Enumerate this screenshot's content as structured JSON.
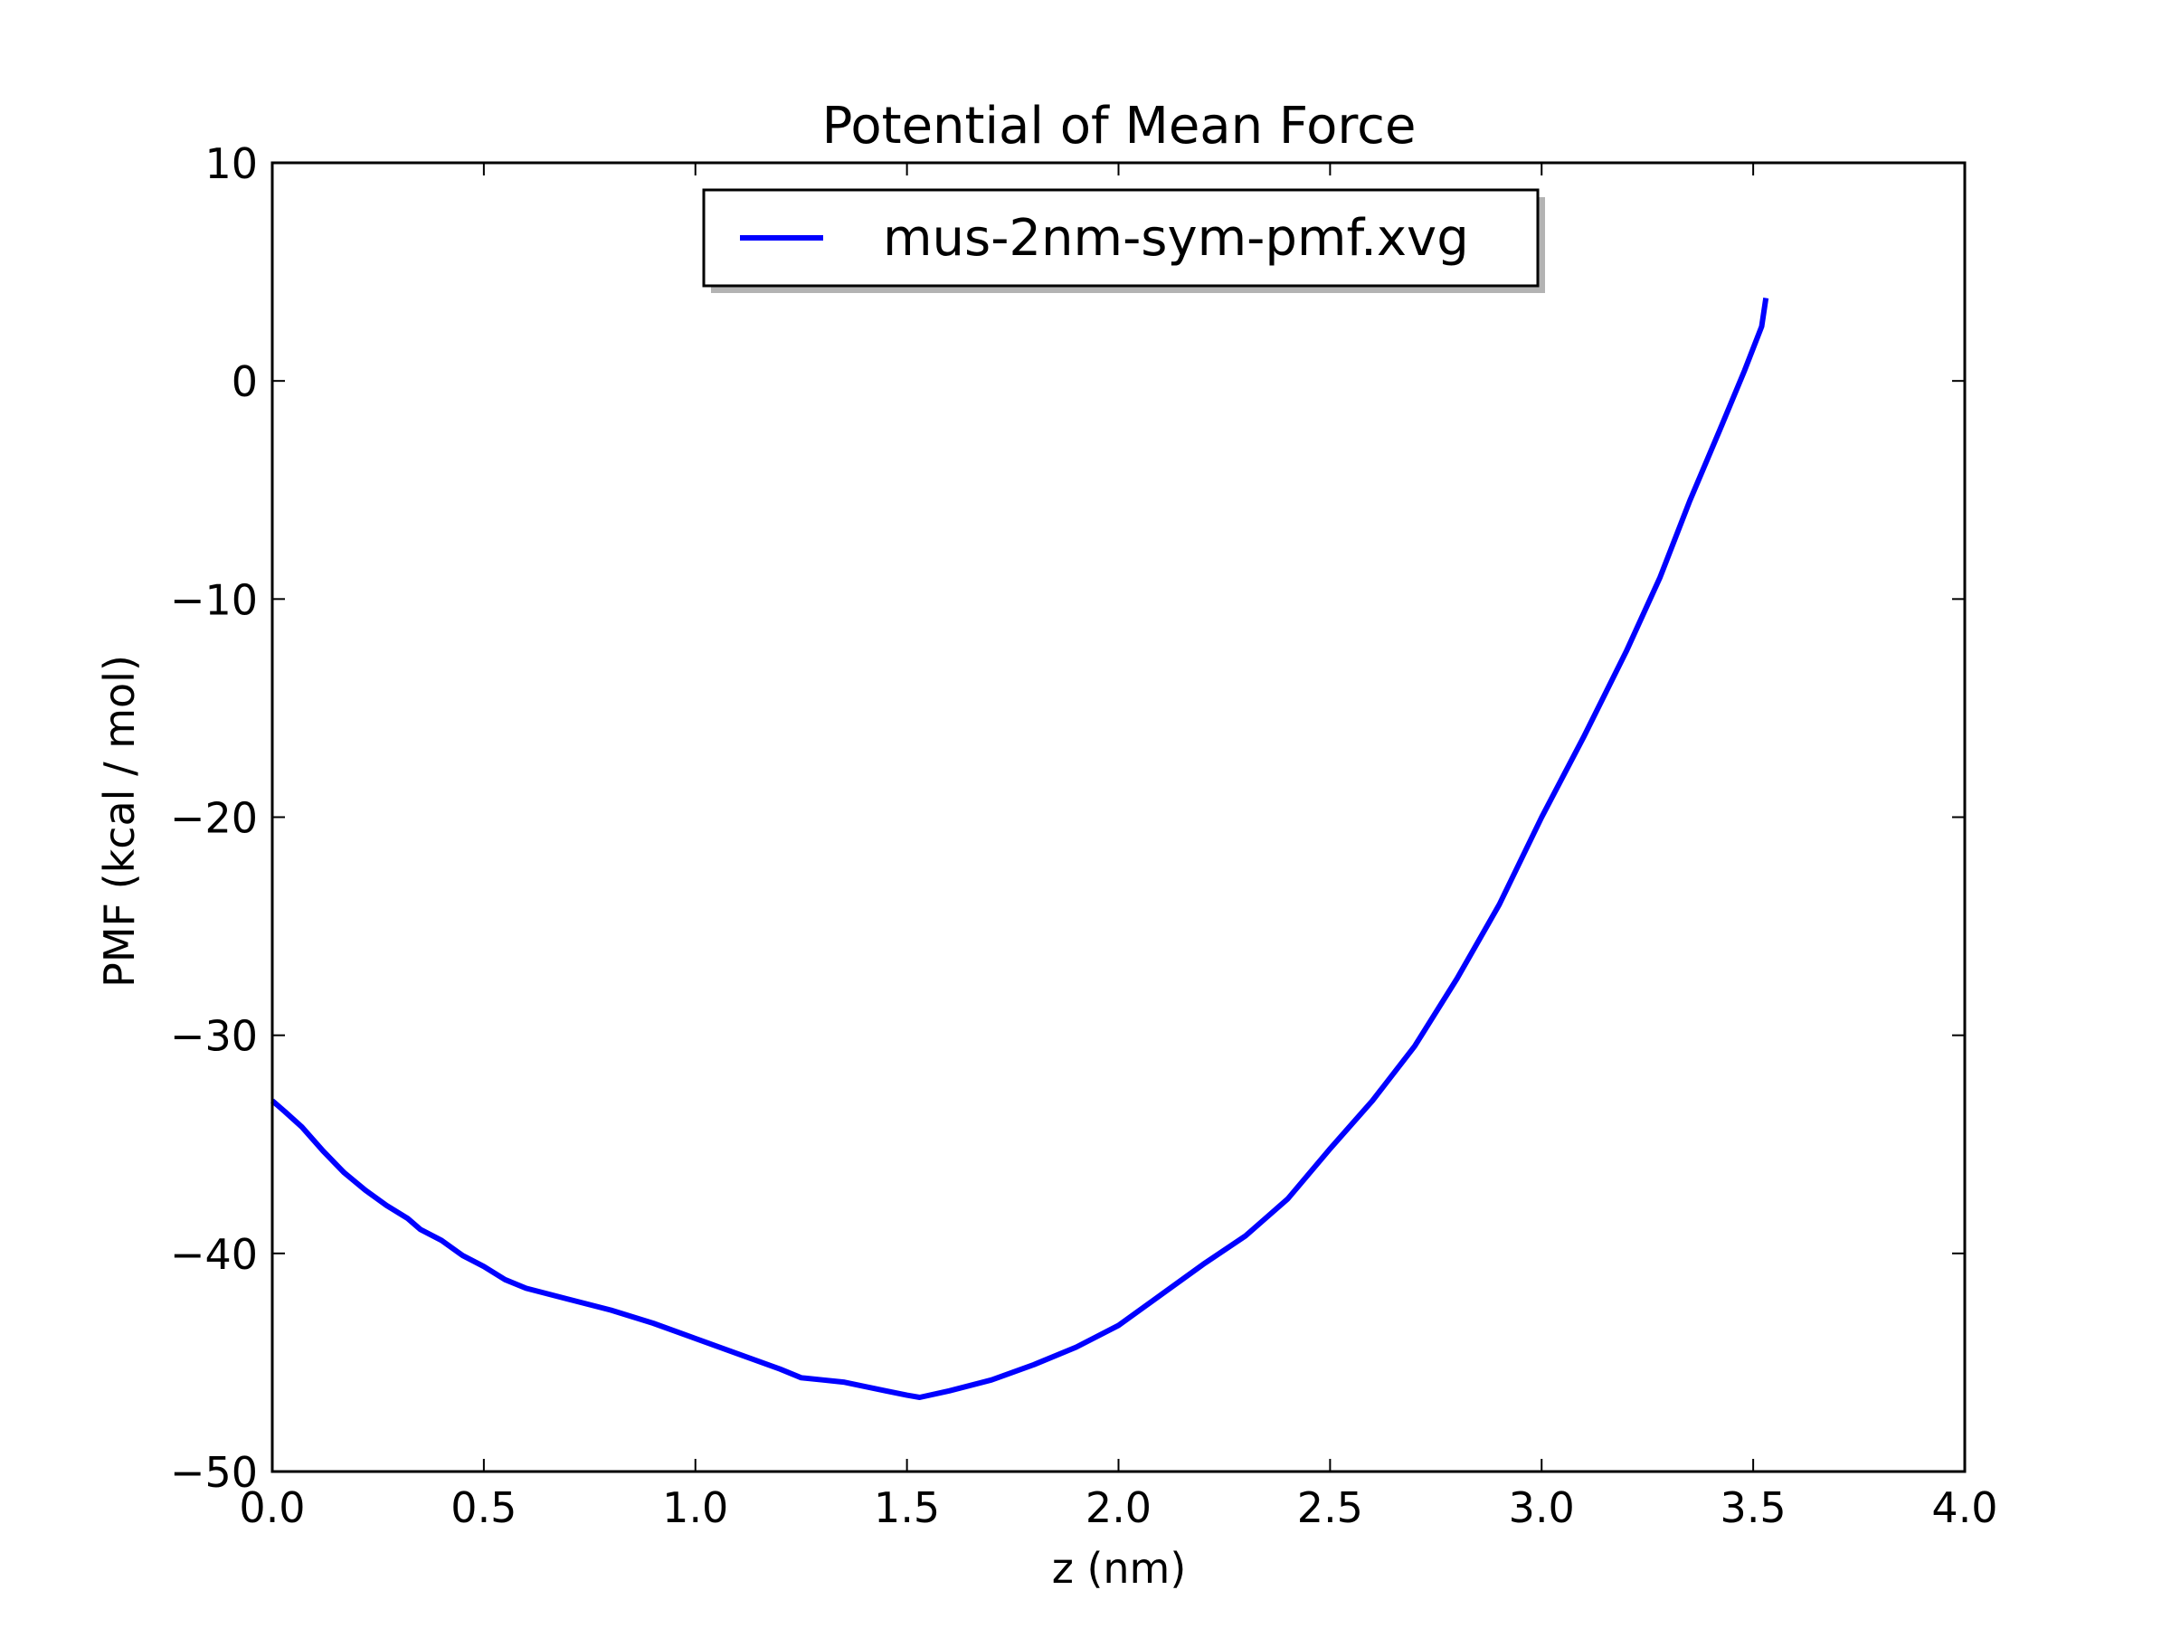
{
  "chart_data": {
    "type": "line",
    "title": "Potential of Mean Force",
    "xlabel": "z (nm)",
    "ylabel": "PMF (kcal / mol)",
    "xlim": [
      0.0,
      4.0
    ],
    "ylim": [
      -50,
      10
    ],
    "xticks": [
      0.0,
      0.5,
      1.0,
      1.5,
      2.0,
      2.5,
      3.0,
      3.5,
      4.0
    ],
    "xtick_labels": [
      "0.0",
      "0.5",
      "1.0",
      "1.5",
      "2.0",
      "2.5",
      "3.0",
      "3.5",
      "4.0"
    ],
    "yticks": [
      -50,
      -40,
      -30,
      -20,
      -10,
      0,
      10
    ],
    "ytick_labels": [
      "−50",
      "−40",
      "−30",
      "−20",
      "−10",
      "0",
      "10"
    ],
    "grid": false,
    "legend_position": "upper center",
    "series": [
      {
        "name": "mus-2nm-sym-pmf.xvg",
        "color": "#0000ff",
        "x": [
          0.0,
          0.03,
          0.07,
          0.12,
          0.17,
          0.22,
          0.27,
          0.32,
          0.35,
          0.4,
          0.45,
          0.5,
          0.55,
          0.6,
          0.7,
          0.8,
          0.9,
          1.0,
          1.1,
          1.2,
          1.25,
          1.3,
          1.35,
          1.4,
          1.45,
          1.5,
          1.53,
          1.6,
          1.7,
          1.8,
          1.9,
          2.0,
          2.1,
          2.2,
          2.3,
          2.4,
          2.5,
          2.6,
          2.7,
          2.8,
          2.9,
          3.0,
          3.1,
          3.2,
          3.28,
          3.35,
          3.42,
          3.48,
          3.52,
          3.53
        ],
        "y": [
          -33.0,
          -33.5,
          -34.2,
          -35.3,
          -36.3,
          -37.1,
          -37.8,
          -38.4,
          -38.9,
          -39.4,
          -40.1,
          -40.6,
          -41.2,
          -41.6,
          -42.1,
          -42.6,
          -43.2,
          -43.9,
          -44.6,
          -45.3,
          -45.7,
          -45.8,
          -45.9,
          -46.1,
          -46.3,
          -46.5,
          -46.6,
          -46.3,
          -45.8,
          -45.1,
          -44.3,
          -43.3,
          -41.9,
          -40.5,
          -39.2,
          -37.5,
          -35.2,
          -33.0,
          -30.5,
          -27.4,
          -24.0,
          -20.0,
          -16.3,
          -12.4,
          -9.0,
          -5.5,
          -2.3,
          0.5,
          2.5,
          3.8
        ]
      }
    ]
  }
}
